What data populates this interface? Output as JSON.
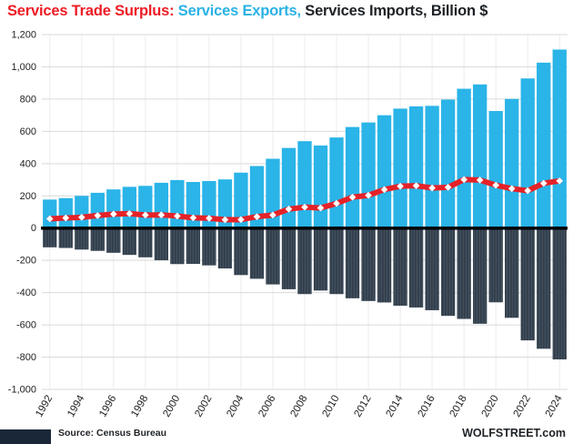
{
  "title": {
    "surplus": "Services Trade Surplus:",
    "exports": " Services Exports,",
    "imports": " Services Imports, Billion $"
  },
  "footer": {
    "source": "Source: Census Bureau",
    "site": "WOLFSTREET.com"
  },
  "colors": {
    "surplus_red": "#e52228",
    "exports_cyan": "#2ab4e8",
    "imports_dark": "#323e4c",
    "grid": "#d9d9d9",
    "vgrid": "#ececec",
    "zero_line": "#000000",
    "tick_text": "#222222",
    "logo_navy": "#1a2738"
  },
  "chart_data": {
    "type": "bar",
    "title": "Services Trade Surplus: Services Exports, Services Imports, Billion $",
    "ylabel": "Billion $",
    "xlabel": "",
    "ylim": [
      -1000,
      1200
    ],
    "ytick_step": 200,
    "grid": true,
    "legend": "in-title-colored-text",
    "categories": [
      1992,
      1993,
      1994,
      1995,
      1996,
      1997,
      1998,
      1999,
      2000,
      2001,
      2002,
      2003,
      2004,
      2005,
      2006,
      2007,
      2008,
      2009,
      2010,
      2011,
      2012,
      2013,
      2014,
      2015,
      2016,
      2017,
      2018,
      2019,
      2020,
      2021,
      2022,
      2023,
      2024
    ],
    "yticks": [
      "1,200",
      "1,000",
      "800",
      "600",
      "400",
      "200",
      "0",
      "-200",
      "-400",
      "-600",
      "-800",
      "-1,000"
    ],
    "xticks": [
      "1992",
      "1994",
      "1996",
      "1998",
      "2000",
      "2002",
      "2004",
      "2006",
      "2008",
      "2010",
      "2012",
      "2014",
      "2016",
      "2018",
      "2020",
      "2022",
      "2024"
    ],
    "series": [
      {
        "name": "Services Exports",
        "type": "bar",
        "color": "#2ab4e8",
        "values": [
          177,
          186,
          200,
          219,
          240,
          256,
          262,
          281,
          298,
          286,
          292,
          302,
          344,
          385,
          430,
          497,
          539,
          512,
          562,
          627,
          655,
          700,
          741,
          755,
          758,
          797,
          864,
          891,
          726,
          801,
          928,
          1026,
          1107
        ]
      },
      {
        "name": "Services Imports",
        "type": "bar",
        "color": "#323e4c",
        "texture": "vertical-stripes",
        "values": [
          -119,
          -123,
          -133,
          -141,
          -153,
          -166,
          -181,
          -199,
          -223,
          -222,
          -231,
          -250,
          -291,
          -314,
          -349,
          -379,
          -409,
          -387,
          -409,
          -435,
          -452,
          -461,
          -481,
          -492,
          -509,
          -544,
          -563,
          -593,
          -460,
          -556,
          -696,
          -748,
          -814
        ]
      },
      {
        "name": "Services Trade Surplus",
        "type": "line",
        "color": "#e52228",
        "marker": "white-diamond",
        "values": [
          58,
          63,
          67,
          78,
          87,
          90,
          81,
          82,
          75,
          64,
          61,
          52,
          53,
          71,
          81,
          118,
          130,
          125,
          153,
          192,
          203,
          239,
          260,
          263,
          249,
          253,
          301,
          298,
          266,
          245,
          232,
          278,
          293
        ]
      }
    ]
  }
}
